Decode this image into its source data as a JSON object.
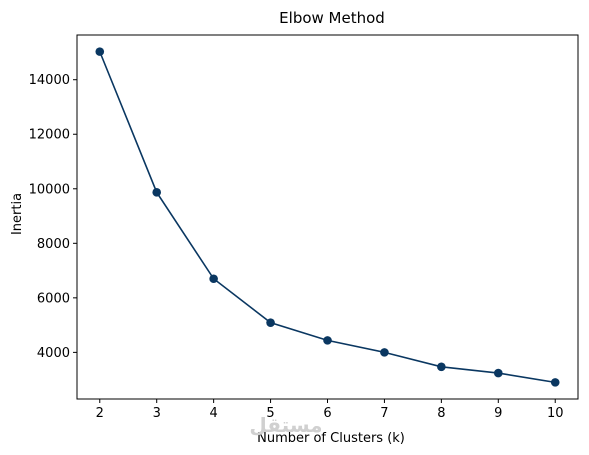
{
  "chart_data": {
    "type": "line",
    "title": "Elbow Method",
    "xlabel": "Number of Clusters (k)",
    "ylabel": "Inertia",
    "x": [
      2,
      3,
      4,
      5,
      6,
      7,
      8,
      9,
      10
    ],
    "y": [
      15030,
      9870,
      6700,
      5090,
      4440,
      4000,
      3470,
      3240,
      2900
    ],
    "xlim": [
      1.6,
      10.4
    ],
    "ylim": [
      2290,
      15640
    ],
    "xticks": [
      2,
      3,
      4,
      5,
      6,
      7,
      8,
      9,
      10
    ],
    "yticks": [
      4000,
      6000,
      8000,
      10000,
      12000,
      14000
    ],
    "series_color": "#0a3761",
    "marker": "circle",
    "grid": false,
    "watermark": "مستقل"
  }
}
